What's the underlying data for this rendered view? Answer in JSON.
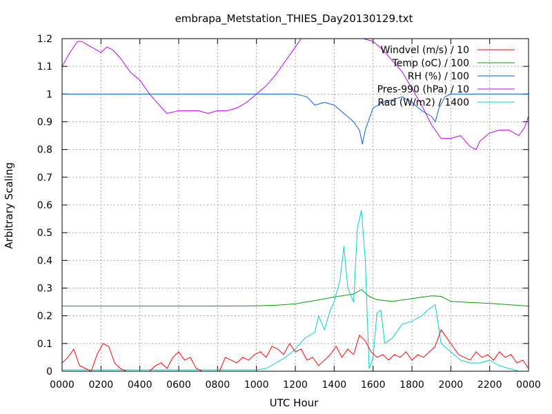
{
  "chart_data": {
    "type": "line",
    "title": "embrapa_Metstation_THIES_Day20130129.txt",
    "xlabel": "UTC Hour",
    "ylabel": "Arbitrary Scaling",
    "xlim": [
      0,
      2400
    ],
    "ylim": [
      0,
      1.2
    ],
    "x_ticks": [
      "0000",
      "0200",
      "0400",
      "0600",
      "0800",
      "1000",
      "1200",
      "1400",
      "1600",
      "1800",
      "2000",
      "2200",
      "0000"
    ],
    "y_ticks": [
      "0",
      "0.1",
      "0.2",
      "0.3",
      "0.4",
      "0.5",
      "0.6",
      "0.7",
      "0.8",
      "0.9",
      "1",
      "1.1",
      "1.2"
    ],
    "grid": true,
    "legend_position": "top-right",
    "series": [
      {
        "name": "Windvel (m/s) / 10",
        "color": "#ff0000",
        "x": [
          0,
          30,
          60,
          90,
          120,
          150,
          180,
          210,
          240,
          270,
          300,
          330,
          360,
          390,
          420,
          450,
          480,
          510,
          540,
          570,
          600,
          630,
          660,
          690,
          720,
          750,
          780,
          810,
          840,
          870,
          900,
          930,
          960,
          990,
          1020,
          1050,
          1080,
          1110,
          1140,
          1170,
          1200,
          1230,
          1260,
          1290,
          1320,
          1350,
          1380,
          1410,
          1440,
          1470,
          1500,
          1530,
          1560,
          1590,
          1620,
          1650,
          1680,
          1710,
          1740,
          1770,
          1800,
          1830,
          1860,
          1890,
          1920,
          1950,
          1980,
          2010,
          2040,
          2070,
          2100,
          2130,
          2160,
          2190,
          2220,
          2250,
          2280,
          2310,
          2340,
          2370,
          2400
        ],
        "y": [
          0.03,
          0.05,
          0.08,
          0.02,
          0.01,
          0.0,
          0.06,
          0.1,
          0.09,
          0.03,
          0.01,
          0.0,
          0.0,
          0.0,
          0.0,
          0.0,
          0.02,
          0.03,
          0.01,
          0.05,
          0.07,
          0.04,
          0.05,
          0.01,
          0.0,
          0.0,
          0.0,
          0.0,
          0.05,
          0.04,
          0.03,
          0.05,
          0.04,
          0.06,
          0.07,
          0.05,
          0.09,
          0.08,
          0.06,
          0.1,
          0.07,
          0.08,
          0.04,
          0.05,
          0.02,
          0.04,
          0.06,
          0.09,
          0.05,
          0.08,
          0.06,
          0.13,
          0.11,
          0.07,
          0.05,
          0.06,
          0.04,
          0.06,
          0.05,
          0.07,
          0.04,
          0.06,
          0.05,
          0.07,
          0.09,
          0.15,
          0.12,
          0.09,
          0.06,
          0.05,
          0.04,
          0.07,
          0.05,
          0.06,
          0.04,
          0.07,
          0.05,
          0.06,
          0.03,
          0.04,
          0.01
        ]
      },
      {
        "name": "Temp (oC) / 100",
        "color": "#00a000",
        "x": [
          0,
          200,
          400,
          600,
          800,
          1000,
          1100,
          1200,
          1300,
          1400,
          1450,
          1500,
          1540,
          1580,
          1620,
          1700,
          1800,
          1900,
          1950,
          2000,
          2100,
          2200,
          2300,
          2400
        ],
        "y": [
          0.235,
          0.235,
          0.235,
          0.235,
          0.235,
          0.236,
          0.238,
          0.243,
          0.255,
          0.268,
          0.273,
          0.278,
          0.295,
          0.27,
          0.258,
          0.252,
          0.262,
          0.272,
          0.27,
          0.252,
          0.248,
          0.245,
          0.24,
          0.235
        ]
      },
      {
        "name": "RH (%) / 100",
        "color": "#0060e0",
        "x": [
          0,
          1200,
          1260,
          1300,
          1350,
          1400,
          1450,
          1500,
          1530,
          1545,
          1560,
          1580,
          1600,
          1650,
          1700,
          1750,
          1800,
          1850,
          1900,
          1920,
          1940,
          1970,
          2000,
          2100,
          2400
        ],
        "y": [
          1.0,
          1.0,
          0.99,
          0.96,
          0.97,
          0.96,
          0.93,
          0.9,
          0.87,
          0.82,
          0.87,
          0.91,
          0.95,
          0.97,
          0.98,
          0.99,
          0.97,
          0.94,
          0.92,
          0.9,
          0.95,
          0.99,
          1.0,
          1.0,
          1.0
        ]
      },
      {
        "name": "Pres-990 (hPa) / 10",
        "color": "#c000ff",
        "x": [
          0,
          40,
          80,
          100,
          150,
          200,
          230,
          260,
          300,
          350,
          400,
          450,
          500,
          540,
          600,
          650,
          700,
          750,
          800,
          850,
          900,
          950,
          1000,
          1050,
          1100,
          1150,
          1200,
          1230,
          1250,
          1300,
          1350,
          1400,
          1450,
          1500,
          1550,
          1600,
          1650,
          1700,
          1750,
          1800,
          1850,
          1900,
          1950,
          2000,
          2050,
          2100,
          2130,
          2150,
          2200,
          2250,
          2300,
          2350,
          2380,
          2400
        ],
        "y": [
          1.1,
          1.15,
          1.19,
          1.19,
          1.17,
          1.15,
          1.17,
          1.16,
          1.13,
          1.08,
          1.05,
          1.0,
          0.96,
          0.93,
          0.94,
          0.94,
          0.94,
          0.93,
          0.94,
          0.94,
          0.95,
          0.97,
          1.0,
          1.03,
          1.07,
          1.12,
          1.17,
          1.2,
          1.2,
          1.2,
          1.2,
          1.2,
          1.2,
          1.2,
          1.2,
          1.19,
          1.16,
          1.12,
          1.08,
          1.02,
          0.96,
          0.89,
          0.84,
          0.84,
          0.85,
          0.81,
          0.8,
          0.83,
          0.86,
          0.87,
          0.87,
          0.85,
          0.88,
          0.92
        ]
      },
      {
        "name": "Rad (W/m2) / 1400",
        "color": "#00d0d0",
        "x": [
          0,
          1000,
          1050,
          1100,
          1150,
          1200,
          1250,
          1300,
          1320,
          1350,
          1380,
          1400,
          1430,
          1450,
          1470,
          1500,
          1520,
          1540,
          1560,
          1580,
          1600,
          1620,
          1640,
          1660,
          1700,
          1750,
          1800,
          1850,
          1880,
          1900,
          1920,
          1950,
          2000,
          2050,
          2100,
          2150,
          2200,
          2250,
          2300,
          2350,
          2400
        ],
        "y": [
          0.005,
          0.005,
          0.01,
          0.03,
          0.05,
          0.08,
          0.12,
          0.14,
          0.2,
          0.15,
          0.22,
          0.25,
          0.33,
          0.45,
          0.3,
          0.25,
          0.52,
          0.58,
          0.4,
          0.01,
          0.05,
          0.21,
          0.22,
          0.1,
          0.12,
          0.17,
          0.18,
          0.2,
          0.22,
          0.23,
          0.24,
          0.1,
          0.07,
          0.04,
          0.03,
          0.03,
          0.04,
          0.02,
          0.01,
          0.0,
          0.0
        ]
      }
    ]
  }
}
